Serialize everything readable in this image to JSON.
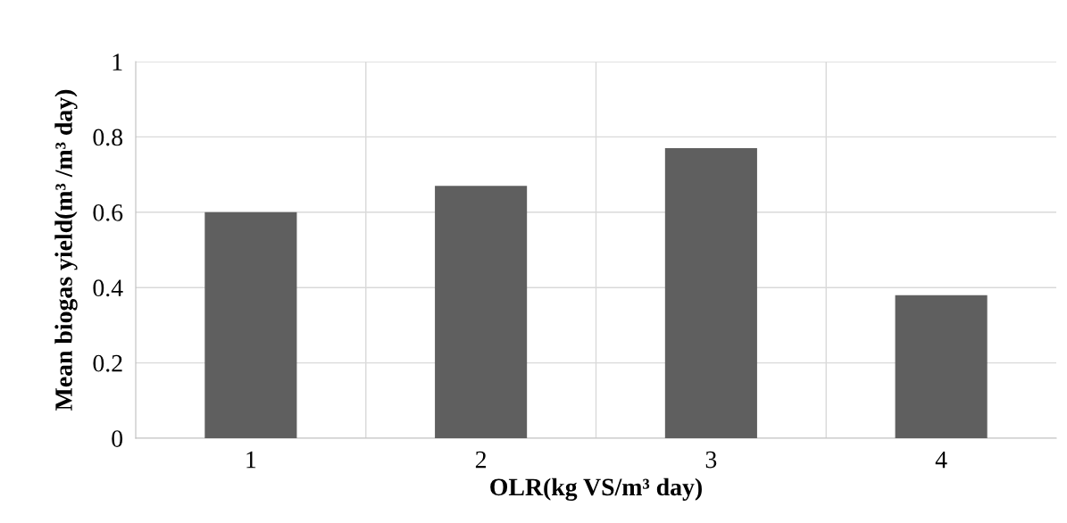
{
  "chart_data": {
    "type": "bar",
    "xlabel": "OLR(kg VS/m³ day)",
    "ylabel": "Mean biogas yield(m³ /m³ day)",
    "categories": [
      "1",
      "2",
      "3",
      "4"
    ],
    "values": [
      0.6,
      0.67,
      0.77,
      0.38
    ],
    "color": "#5f5f5f",
    "ylim": [
      0,
      1
    ],
    "yticks": [
      0,
      0.2,
      0.4,
      0.6,
      0.8,
      1
    ],
    "grid": true
  }
}
